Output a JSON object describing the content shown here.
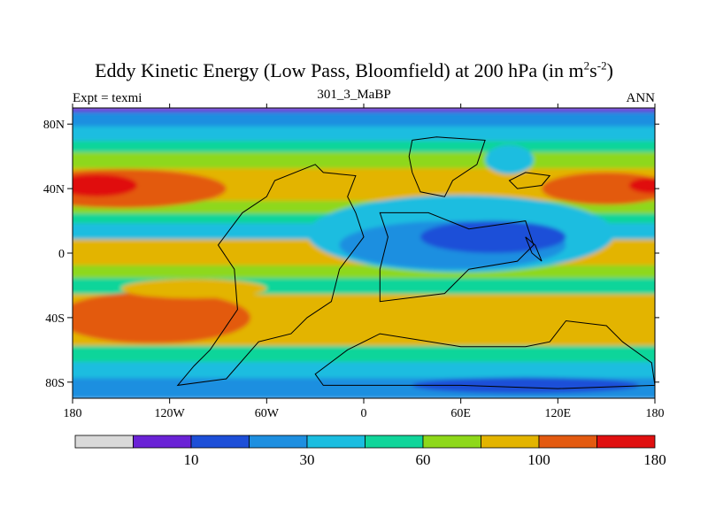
{
  "chart_data": {
    "type": "heatmap",
    "title": {
      "main": "Eddy Kinetic Energy (Low Pass, Bloomfield) at 200 hPa (in m",
      "sup1": "2",
      "mid": "s",
      "sup2": "-2",
      "end": ")"
    },
    "left_label": "Expt = texmi",
    "center_label": "301_3_MaBP",
    "right_label": "ANN",
    "x_ticks": [
      {
        "value": -180,
        "label": "180"
      },
      {
        "value": -120,
        "label": "120W"
      },
      {
        "value": -60,
        "label": "60W"
      },
      {
        "value": 0,
        "label": "0"
      },
      {
        "value": 60,
        "label": "60E"
      },
      {
        "value": 120,
        "label": "120E"
      },
      {
        "value": 180,
        "label": "180"
      }
    ],
    "y_ticks": [
      {
        "value": 80,
        "label": "80N"
      },
      {
        "value": 40,
        "label": "40N"
      },
      {
        "value": 0,
        "label": "0"
      },
      {
        "value": -40,
        "label": "40S"
      },
      {
        "value": -80,
        "label": "80S"
      }
    ],
    "xlim": [
      -180,
      180
    ],
    "ylim": [
      -90,
      90
    ],
    "colorbar": {
      "colors": [
        "#d9d9d9",
        "#6a22d6",
        "#1d4fd8",
        "#1e8fe0",
        "#1bbde0",
        "#10d59a",
        "#8ed81a",
        "#e3b400",
        "#e35a10",
        "#e01010"
      ],
      "labels": [
        {
          "after_box": 1,
          "text": "10"
        },
        {
          "after_box": 3,
          "text": "30"
        },
        {
          "after_box": 5,
          "text": "60"
        },
        {
          "after_box": 7,
          "text": "100"
        },
        {
          "after_box": 9,
          "text": "180"
        }
      ]
    },
    "bands": [
      {
        "lat_top": 90,
        "lat_bottom": 87,
        "color": "#6a22d6"
      },
      {
        "lat_top": 87,
        "lat_bottom": 78,
        "color": "#1e8fe0"
      },
      {
        "lat_top": 78,
        "lat_bottom": 69,
        "color": "#1bbde0"
      },
      {
        "lat_top": 69,
        "lat_bottom": 62,
        "color": "#10d59a"
      },
      {
        "lat_top": 62,
        "lat_bottom": 52,
        "color": "#8ed81a"
      },
      {
        "lat_top": 52,
        "lat_bottom": 32,
        "color": "#e3b400"
      },
      {
        "lat_top": 32,
        "lat_bottom": 24,
        "color": "#8ed81a"
      },
      {
        "lat_top": 24,
        "lat_bottom": 18,
        "color": "#10d59a"
      },
      {
        "lat_top": 18,
        "lat_bottom": 8,
        "color": "#1bbde0"
      },
      {
        "lat_top": 8,
        "lat_bottom": -8,
        "color": "#e3b400"
      },
      {
        "lat_top": -8,
        "lat_bottom": -16,
        "color": "#8ed81a"
      },
      {
        "lat_top": -16,
        "lat_bottom": -26,
        "color": "#10d59a"
      },
      {
        "lat_top": -26,
        "lat_bottom": -58,
        "color": "#e3b400"
      },
      {
        "lat_top": -58,
        "lat_bottom": -68,
        "color": "#10d59a"
      },
      {
        "lat_top": -68,
        "lat_bottom": -78,
        "color": "#1bbde0"
      },
      {
        "lat_top": -78,
        "lat_bottom": -90,
        "color": "#1e8fe0"
      }
    ],
    "blobs": [
      {
        "lon": 60,
        "lat": 12,
        "rlon": 95,
        "rlat": 24,
        "color": "#1bbde0"
      },
      {
        "lon": 55,
        "lat": 5,
        "rlon": 70,
        "rlat": 15,
        "color": "#1e8fe0"
      },
      {
        "lon": 80,
        "lat": 10,
        "rlon": 45,
        "rlat": 10,
        "color": "#1d4fd8"
      },
      {
        "lon": -150,
        "lat": 40,
        "rlon": 65,
        "rlat": 12,
        "color": "#e35a10"
      },
      {
        "lon": -165,
        "lat": 42,
        "rlon": 25,
        "rlat": 7,
        "color": "#e01010"
      },
      {
        "lon": 150,
        "lat": 40,
        "rlon": 40,
        "rlat": 10,
        "color": "#e35a10"
      },
      {
        "lon": 178,
        "lat": 42,
        "rlon": 14,
        "rlat": 5,
        "color": "#e01010"
      },
      {
        "lon": -130,
        "lat": -40,
        "rlon": 60,
        "rlat": 16,
        "color": "#e35a10"
      },
      {
        "lon": 100,
        "lat": -82,
        "rlon": 70,
        "rlat": 5,
        "color": "#1d4fd8"
      },
      {
        "lon": 90,
        "lat": 58,
        "rlon": 15,
        "rlat": 9,
        "color": "#1bbde0"
      },
      {
        "lon": -105,
        "lat": -22,
        "rlon": 45,
        "rlat": 6,
        "color": "#e3b400"
      }
    ],
    "outlines": [
      [
        [
          30,
          70
        ],
        [
          45,
          72
        ],
        [
          75,
          70
        ],
        [
          70,
          55
        ],
        [
          55,
          45
        ],
        [
          50,
          35
        ],
        [
          35,
          38
        ],
        [
          30,
          50
        ],
        [
          28,
          60
        ]
      ],
      [
        [
          -10,
          35
        ],
        [
          -5,
          48
        ],
        [
          -25,
          50
        ],
        [
          -30,
          55
        ],
        [
          -55,
          45
        ],
        [
          -60,
          35
        ],
        [
          -75,
          25
        ],
        [
          -90,
          5
        ],
        [
          -80,
          -10
        ],
        [
          -78,
          -35
        ],
        [
          -95,
          -60
        ],
        [
          -105,
          -70
        ],
        [
          -115,
          -82
        ],
        [
          -85,
          -78
        ],
        [
          -65,
          -55
        ],
        [
          -45,
          -50
        ],
        [
          -35,
          -40
        ],
        [
          -20,
          -30
        ],
        [
          -15,
          -10
        ],
        [
          0,
          10
        ],
        [
          -5,
          25
        ]
      ],
      [
        [
          10,
          25
        ],
        [
          40,
          25
        ],
        [
          65,
          15
        ],
        [
          100,
          20
        ],
        [
          105,
          5
        ],
        [
          95,
          -5
        ],
        [
          65,
          -10
        ],
        [
          50,
          -25
        ],
        [
          10,
          -30
        ],
        [
          10,
          -10
        ],
        [
          15,
          10
        ]
      ],
      [
        [
          90,
          45
        ],
        [
          95,
          40
        ],
        [
          110,
          42
        ],
        [
          115,
          48
        ],
        [
          100,
          50
        ]
      ],
      [
        [
          100,
          10
        ],
        [
          104,
          0
        ],
        [
          110,
          -5
        ],
        [
          106,
          5
        ]
      ],
      [
        [
          0,
          -82
        ],
        [
          60,
          -82
        ],
        [
          120,
          -84
        ],
        [
          180,
          -82
        ],
        [
          178,
          -68
        ],
        [
          160,
          -55
        ],
        [
          150,
          -45
        ],
        [
          125,
          -42
        ],
        [
          115,
          -55
        ],
        [
          100,
          -58
        ],
        [
          60,
          -58
        ],
        [
          10,
          -50
        ],
        [
          -10,
          -60
        ],
        [
          -30,
          -75
        ],
        [
          -25,
          -82
        ]
      ]
    ]
  }
}
